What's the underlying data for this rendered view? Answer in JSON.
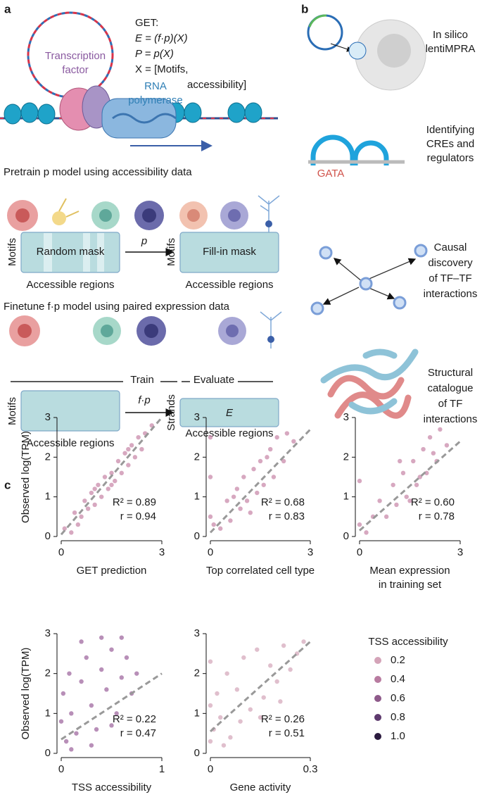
{
  "panel_a": {
    "label": "a",
    "formula": [
      "GET:",
      "E = (f·p)(X)",
      "P = p(X)",
      "X = [Motifs,",
      "accessibility]"
    ],
    "tf_label": [
      "Transcription",
      "factor"
    ],
    "pol_label": [
      "RNA",
      "polymerase"
    ],
    "pretrain_heading": "Pretrain p model using accessibility data",
    "pretrain": {
      "input_box": "Random mask",
      "output_box": "Fill-in mask",
      "input_axis": "Motifs",
      "output_axis": "Motifs",
      "input_regions": "Accessible regions",
      "output_regions": "Accessible regions",
      "arrow": "p"
    },
    "finetune_heading": "Finetune f·p model using paired expression data",
    "finetune": {
      "train": "Train",
      "evaluate": "Evaluate",
      "input_axis": "Motifs",
      "output_axis": "Strands",
      "arrow": "f·p",
      "output_box": "E",
      "input_regions": "Accessible regions",
      "output_regions": "Accessible regions"
    }
  },
  "panel_b": {
    "label": "b",
    "tasks": [
      [
        "In silico",
        "lentiMPRA"
      ],
      [
        "Identifying",
        "CREs and",
        "regulators"
      ],
      [
        "Causal",
        "discovery",
        "of TF–TF",
        "interactions"
      ],
      [
        "Structural",
        "catalogue",
        "of TF",
        "interactions"
      ]
    ],
    "motif": "GATA"
  },
  "panel_c": {
    "label": "c",
    "color_legend": {
      "title": "TSS accessibility",
      "entries": [
        {
          "value": 0.2,
          "color": "#d4a3b8"
        },
        {
          "value": 0.4,
          "color": "#b87ba0"
        },
        {
          "value": 0.6,
          "color": "#8e5a8a"
        },
        {
          "value": 0.8,
          "color": "#5e3a6e"
        },
        {
          "value": 1,
          "label": "1.0",
          "color": "#2a1a3e"
        }
      ]
    }
  },
  "chart_data": [
    {
      "type": "scatter",
      "ylabel": "Observed log(TPM)",
      "xlabel": [
        "GET prediction"
      ],
      "color": "#c98bab",
      "xlim": [
        0,
        3
      ],
      "ylim": [
        0,
        3
      ],
      "xticks": [
        0,
        3
      ],
      "yticks": [
        0,
        1,
        2,
        3
      ],
      "x": [
        0.1,
        0.3,
        0.4,
        0.6,
        0.7,
        0.8,
        0.9,
        1.0,
        1.1,
        1.2,
        1.3,
        1.4,
        1.5,
        1.6,
        1.7,
        1.8,
        1.9,
        2.0,
        2.1,
        2.2,
        2.3,
        2.4,
        2.5,
        2.7,
        0.5,
        1.0,
        1.5,
        2.0
      ],
      "values": [
        0.2,
        0.1,
        0.6,
        0.5,
        0.9,
        0.7,
        1.1,
        0.8,
        1.3,
        1.0,
        1.5,
        1.2,
        1.6,
        1.4,
        1.9,
        1.6,
        2.1,
        1.8,
        2.3,
        2.0,
        2.5,
        2.2,
        2.6,
        2.8,
        0.3,
        1.2,
        1.3,
        2.2
      ],
      "trend": {
        "x": [
          0,
          3
        ],
        "values": [
          0.05,
          3
        ]
      },
      "annotations": [
        "R² = 0.89",
        "r = 0.94"
      ]
    },
    {
      "type": "scatter",
      "xlabel": [
        "Top correlated cell type"
      ],
      "color": "#c98bab",
      "xlim": [
        0,
        3
      ],
      "ylim": [
        0,
        3
      ],
      "xticks": [
        0,
        3
      ],
      "yticks": [
        0,
        1,
        2,
        3
      ],
      "x": [
        0,
        0,
        0,
        0.1,
        0.3,
        0.5,
        0.6,
        0.8,
        0.9,
        1.0,
        1.1,
        1.3,
        1.4,
        1.5,
        1.6,
        1.8,
        1.9,
        2.0,
        2.2,
        2.3,
        2.5,
        0.7,
        1.2,
        1.7
      ],
      "values": [
        0.5,
        1.5,
        2.5,
        0.3,
        0.2,
        0.9,
        0.4,
        1.2,
        0.7,
        1.5,
        0.9,
        1.7,
        1.1,
        1.9,
        1.3,
        2.2,
        1.5,
        2.5,
        1.9,
        2.6,
        2.4,
        1.0,
        0.6,
        2.0
      ],
      "trend": {
        "x": [
          0,
          3
        ],
        "values": [
          0.1,
          2.7
        ]
      },
      "annotations": [
        "R² = 0.68",
        "r = 0.83"
      ]
    },
    {
      "type": "scatter",
      "xlabel": [
        "Mean expression",
        "in training set"
      ],
      "color": "#c98bab",
      "xlim": [
        0,
        3
      ],
      "ylim": [
        0,
        3
      ],
      "xticks": [
        0,
        3
      ],
      "yticks": [
        0,
        1,
        2,
        3
      ],
      "x": [
        0,
        0,
        0.2,
        0.4,
        0.6,
        0.8,
        1.0,
        1.1,
        1.3,
        1.4,
        1.6,
        1.7,
        1.9,
        2.0,
        2.1,
        2.3,
        2.4,
        2.6,
        1.2,
        1.5,
        1.8,
        2.2
      ],
      "values": [
        0.3,
        1.4,
        0.1,
        0.5,
        0.9,
        0.5,
        1.3,
        0.8,
        1.6,
        1.0,
        1.9,
        1.3,
        2.2,
        1.6,
        2.5,
        1.9,
        2.7,
        2.3,
        1.9,
        0.9,
        1.5,
        2.1
      ],
      "trend": {
        "x": [
          0,
          3
        ],
        "values": [
          0.15,
          2.4
        ]
      },
      "annotations": [
        "R² = 0.60",
        "r = 0.78"
      ]
    },
    {
      "type": "scatter",
      "ylabel": "Observed log(TPM)",
      "xlabel": [
        "TSS accessibility"
      ],
      "color": "#a06aa0",
      "xlim": [
        0,
        1
      ],
      "ylim": [
        0,
        3
      ],
      "xticks": [
        0,
        1
      ],
      "yticks": [
        0,
        1,
        2,
        3
      ],
      "x": [
        0,
        0.02,
        0.05,
        0.08,
        0.1,
        0.15,
        0.2,
        0.25,
        0.3,
        0.35,
        0.4,
        0.45,
        0.5,
        0.55,
        0.6,
        0.65,
        0.7,
        0.75,
        0.1,
        0.3,
        0.5,
        0.2,
        0.4,
        0.6
      ],
      "values": [
        0.8,
        1.5,
        0.3,
        2.0,
        1.0,
        0.5,
        1.8,
        2.4,
        1.2,
        0.6,
        2.1,
        1.6,
        2.6,
        1.0,
        1.9,
        2.4,
        1.5,
        2.0,
        0.1,
        0.2,
        0.7,
        2.8,
        2.9,
        2.9
      ],
      "trend": {
        "x": [
          0,
          1
        ],
        "values": [
          0.35,
          2.0
        ]
      },
      "annotations": [
        "R² = 0.22",
        "r = 0.47"
      ]
    },
    {
      "type": "scatter",
      "xlabel": [
        "Gene activity"
      ],
      "color": "#d6a9bc",
      "xlim": [
        0,
        0.3
      ],
      "ylim": [
        0,
        3
      ],
      "xticks": [
        0,
        0.3
      ],
      "yticks": [
        0,
        1,
        2,
        3
      ],
      "x": [
        0,
        0,
        0,
        0.01,
        0.02,
        0.03,
        0.05,
        0.06,
        0.08,
        0.1,
        0.12,
        0.14,
        0.16,
        0.18,
        0.2,
        0.22,
        0.24,
        0.26,
        0.28,
        0.04,
        0.09,
        0.15,
        0.21
      ],
      "values": [
        0.3,
        1.2,
        2.3,
        0.6,
        1.5,
        0.9,
        2.0,
        0.4,
        1.6,
        2.4,
        1.1,
        2.6,
        1.4,
        2.2,
        1.8,
        2.7,
        2.1,
        2.5,
        2.8,
        0.2,
        0.8,
        0.9,
        1.3
      ],
      "trend": {
        "x": [
          0,
          0.3
        ],
        "values": [
          0.55,
          2.8
        ]
      },
      "annotations": [
        "R² = 0.26",
        "r = 0.51"
      ]
    }
  ]
}
